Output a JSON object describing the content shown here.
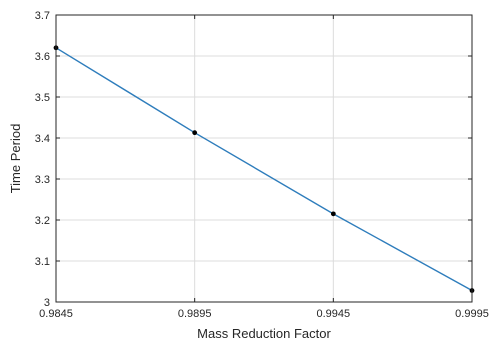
{
  "chart_data": {
    "type": "line",
    "xlabel": "Mass Reduction Factor",
    "ylabel": "Time Period",
    "xlim": [
      0.9845,
      0.9995
    ],
    "ylim": [
      3.0,
      3.7
    ],
    "xticks": [
      "0.9845",
      "0.9895",
      "0.9945",
      "0.9995"
    ],
    "yticks": [
      "3",
      "3.1",
      "3.2",
      "3.3",
      "3.4",
      "3.5",
      "3.6",
      "3.7"
    ],
    "grid": true,
    "series": [
      {
        "x": [
          0.9845,
          0.9895,
          0.9945,
          0.9995
        ],
        "y": [
          3.62,
          3.413,
          3.215,
          3.028
        ],
        "marker": "dot"
      }
    ],
    "line_color": "#2e7dbc",
    "marker_color": "#000000"
  }
}
